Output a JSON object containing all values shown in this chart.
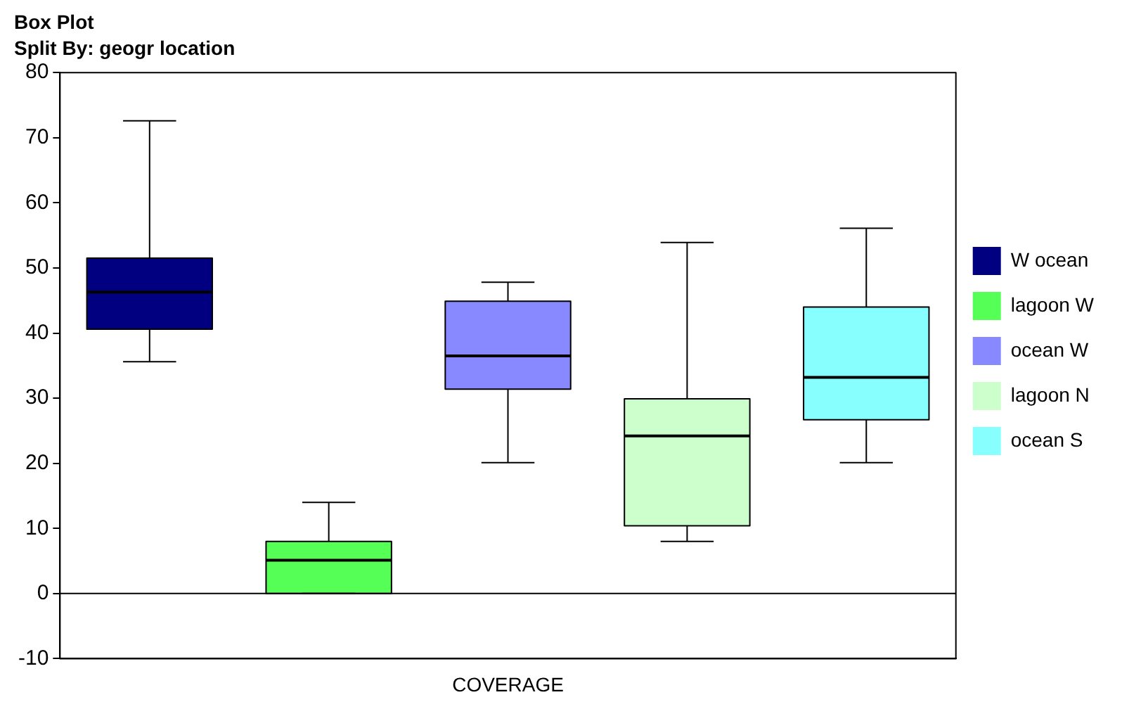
{
  "chart_data": {
    "type": "box",
    "title": "Box Plot",
    "subtitle": "Split By: geogr location",
    "categories": [
      "COVERAGE"
    ],
    "series": [
      {
        "name": "W ocean",
        "color": "#000080",
        "boxes": [
          {
            "low": 35.6,
            "q1": 40.6,
            "median": 46.3,
            "q3": 51.5,
            "high": 72.6
          }
        ]
      },
      {
        "name": "lagoon W",
        "color": "#55ff55",
        "boxes": [
          {
            "low": 0,
            "q1": 0,
            "median": 5.1,
            "q3": 8,
            "high": 14
          }
        ]
      },
      {
        "name": "ocean W",
        "color": "#8888ff",
        "boxes": [
          {
            "low": 20.1,
            "q1": 31.4,
            "median": 36.5,
            "q3": 44.9,
            "high": 47.8
          }
        ]
      },
      {
        "name": "lagoon N",
        "color": "#ccffcc",
        "boxes": [
          {
            "low": 8,
            "q1": 10.4,
            "median": 24.2,
            "q3": 29.9,
            "high": 53.9
          }
        ]
      },
      {
        "name": "ocean S",
        "color": "#88ffff",
        "boxes": [
          {
            "low": 20.1,
            "q1": 26.7,
            "median": 33.2,
            "q3": 44,
            "high": 56.1
          }
        ]
      }
    ],
    "ylim": [
      -10,
      80
    ],
    "yticks": [
      -10,
      0,
      10,
      20,
      30,
      40,
      50,
      60,
      70,
      80
    ],
    "ref_lines": [
      {
        "axis": "y",
        "value": 0
      }
    ],
    "grid": false,
    "legend": "right"
  }
}
